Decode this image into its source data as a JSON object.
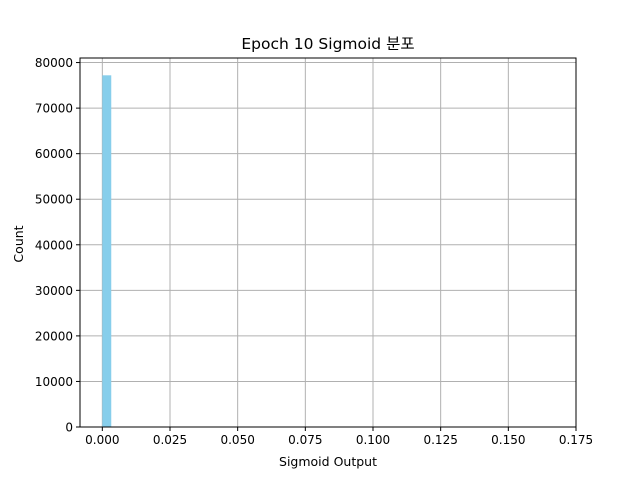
{
  "chart_data": {
    "type": "bar",
    "title": "Epoch 10 Sigmoid 분포",
    "xlabel": "Sigmoid Output",
    "ylabel": "Count",
    "xlim": [
      -0.00825,
      0.175
    ],
    "ylim": [
      0,
      81000
    ],
    "xticks": [
      0.0,
      0.025,
      0.05,
      0.075,
      0.1,
      0.125,
      0.15,
      0.175
    ],
    "xtick_labels": [
      "0.000",
      "0.025",
      "0.050",
      "0.075",
      "0.100",
      "0.125",
      "0.150",
      "0.175"
    ],
    "yticks": [
      0,
      10000,
      20000,
      30000,
      40000,
      50000,
      60000,
      70000,
      80000
    ],
    "ytick_labels": [
      "0",
      "10000",
      "20000",
      "30000",
      "40000",
      "50000",
      "60000",
      "70000",
      "80000"
    ],
    "grid": true,
    "bar_color": "#87CEEB",
    "bins": [
      {
        "start": 0.0,
        "end": 0.0033,
        "count": 77200
      }
    ]
  }
}
